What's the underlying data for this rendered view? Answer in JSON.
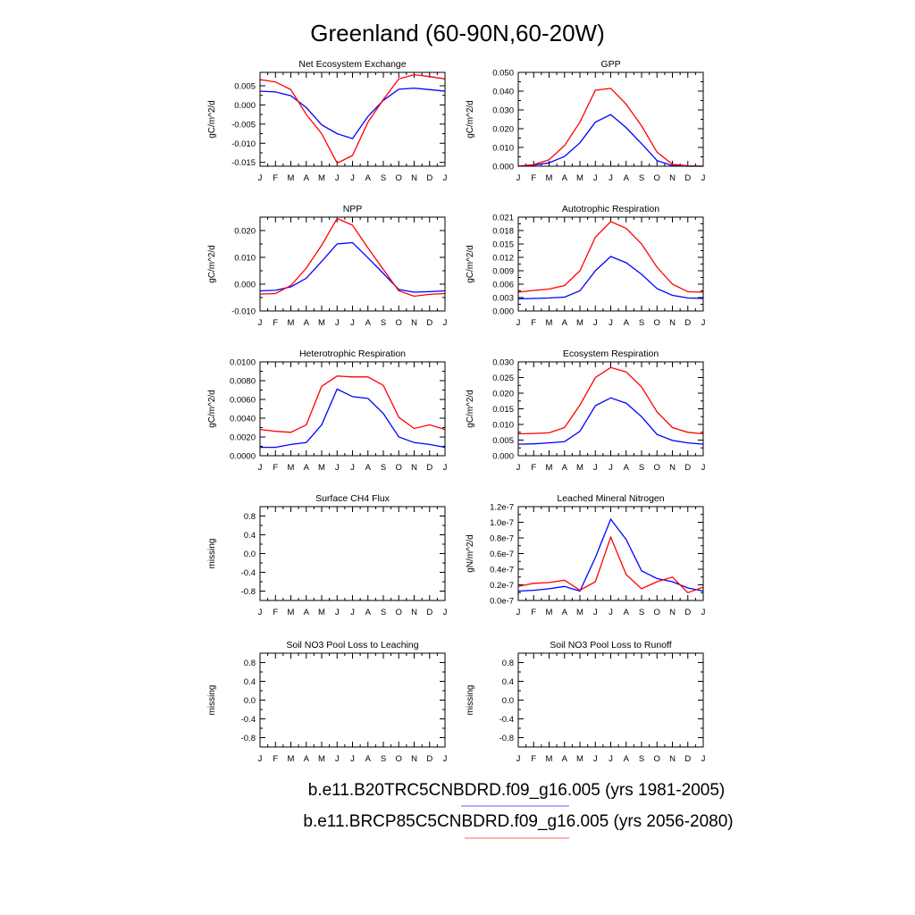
{
  "title": "Greenland (60-90N,60-20W)",
  "colors": {
    "series_1": "#0000ff",
    "series_2": "#ff0000",
    "legend_line_1": "#8080ff",
    "legend_line_2": "#ff8080"
  },
  "legend": [
    {
      "label": "b.e11.B20TRC5CNBDRD.f09_g16.005 (yrs 1981-2005)",
      "color": "#0000ff"
    },
    {
      "label": "b.e11.BRCP85C5CNBDRD.f09_g16.005 (yrs 2056-2080)",
      "color": "#ff0000"
    }
  ],
  "chart_data": [
    {
      "type": "line",
      "title": "Net Ecosystem Exchange",
      "ylabel": "gC/m^2/d",
      "x": [
        "J",
        "F",
        "M",
        "A",
        "M",
        "J",
        "J",
        "A",
        "S",
        "O",
        "N",
        "D",
        "J"
      ],
      "ylim": [
        -0.016,
        0.0085
      ],
      "yticks": [
        -0.015,
        -0.01,
        -0.005,
        0.0,
        0.005
      ],
      "ytick_labels": [
        "-0.015",
        "-0.010",
        "-0.005",
        "0.000",
        "0.005"
      ],
      "series": [
        {
          "color": "#0000ff",
          "values": [
            0.0036,
            0.0034,
            0.0024,
            -0.0007,
            -0.0052,
            -0.0075,
            -0.0088,
            -0.003,
            0.0012,
            0.0041,
            0.0044,
            0.004,
            0.0036
          ]
        },
        {
          "color": "#ff0000",
          "values": [
            0.0066,
            0.006,
            0.004,
            -0.0025,
            -0.0075,
            -0.0152,
            -0.0132,
            -0.0045,
            0.0014,
            0.0068,
            0.0079,
            0.0074,
            0.0068
          ]
        }
      ]
    },
    {
      "type": "line",
      "title": "GPP",
      "ylabel": "gC/m^2/d",
      "x": [
        "J",
        "F",
        "M",
        "A",
        "M",
        "J",
        "J",
        "A",
        "S",
        "O",
        "N",
        "D",
        "J"
      ],
      "ylim": [
        0,
        0.05
      ],
      "yticks": [
        0,
        0.01,
        0.02,
        0.03,
        0.04,
        0.05
      ],
      "ytick_labels": [
        "0.000",
        "0.010",
        "0.020",
        "0.030",
        "0.040",
        "0.050"
      ],
      "series": [
        {
          "color": "#0000ff",
          "values": [
            0.0,
            0.0005,
            0.0018,
            0.0052,
            0.0125,
            0.0235,
            0.0275,
            0.0205,
            0.012,
            0.003,
            0.0003,
            0.0,
            0.0
          ]
        },
        {
          "color": "#ff0000",
          "values": [
            0.0,
            0.0008,
            0.0035,
            0.011,
            0.0235,
            0.0405,
            0.0415,
            0.033,
            0.0215,
            0.0075,
            0.001,
            0.0002,
            0.0
          ]
        }
      ]
    },
    {
      "type": "line",
      "title": "NPP",
      "ylabel": "gC/m^2/d",
      "x": [
        "J",
        "F",
        "M",
        "A",
        "M",
        "J",
        "J",
        "A",
        "S",
        "O",
        "N",
        "D",
        "J"
      ],
      "ylim": [
        -0.01,
        0.025
      ],
      "yticks": [
        -0.01,
        0.0,
        0.01,
        0.02
      ],
      "ytick_labels": [
        "-0.010",
        "0.000",
        "0.010",
        "0.020"
      ],
      "series": [
        {
          "color": "#0000ff",
          "values": [
            -0.0025,
            -0.0023,
            -0.001,
            0.0022,
            0.0085,
            0.015,
            0.0155,
            0.0098,
            0.004,
            -0.002,
            -0.003,
            -0.0028,
            -0.0025
          ]
        },
        {
          "color": "#ff0000",
          "values": [
            -0.0037,
            -0.0035,
            -0.0005,
            0.006,
            0.0145,
            0.0245,
            0.022,
            0.0135,
            0.0055,
            -0.0025,
            -0.0045,
            -0.0038,
            -0.0035
          ]
        }
      ]
    },
    {
      "type": "line",
      "title": "Autotrophic Respiration",
      "ylabel": "gC/m^2/d",
      "x": [
        "J",
        "F",
        "M",
        "A",
        "M",
        "J",
        "J",
        "A",
        "S",
        "O",
        "N",
        "D",
        "J"
      ],
      "ylim": [
        0,
        0.021
      ],
      "yticks": [
        0,
        0.003,
        0.006,
        0.009,
        0.012,
        0.015,
        0.018,
        0.021
      ],
      "ytick_labels": [
        "0.000",
        "0.003",
        "0.006",
        "0.009",
        "0.012",
        "0.015",
        "0.018",
        "0.021"
      ],
      "series": [
        {
          "color": "#0000ff",
          "values": [
            0.0027,
            0.0028,
            0.0029,
            0.0031,
            0.0045,
            0.009,
            0.0122,
            0.0108,
            0.0082,
            0.005,
            0.0035,
            0.0029,
            0.0028
          ]
        },
        {
          "color": "#ff0000",
          "values": [
            0.0042,
            0.0046,
            0.0049,
            0.0057,
            0.009,
            0.0165,
            0.02,
            0.0185,
            0.015,
            0.0098,
            0.006,
            0.0043,
            0.0042
          ]
        }
      ]
    },
    {
      "type": "line",
      "title": "Heterotrophic Respiration",
      "ylabel": "gC/m^2/d",
      "x": [
        "J",
        "F",
        "M",
        "A",
        "M",
        "J",
        "J",
        "A",
        "S",
        "O",
        "N",
        "D",
        "J"
      ],
      "ylim": [
        0,
        0.01
      ],
      "yticks": [
        0,
        0.002,
        0.004,
        0.006,
        0.008,
        0.01
      ],
      "ytick_labels": [
        "0.0000",
        "0.0020",
        "0.0040",
        "0.0060",
        "0.0080",
        "0.0100"
      ],
      "series": [
        {
          "color": "#0000ff",
          "values": [
            0.0009,
            0.0009,
            0.0012,
            0.0014,
            0.0033,
            0.0071,
            0.0063,
            0.0061,
            0.0045,
            0.002,
            0.0014,
            0.0012,
            0.0009
          ]
        },
        {
          "color": "#ff0000",
          "values": [
            0.0028,
            0.0026,
            0.0025,
            0.0033,
            0.0074,
            0.0085,
            0.0084,
            0.0084,
            0.0075,
            0.0041,
            0.0029,
            0.0033,
            0.0028
          ]
        }
      ]
    },
    {
      "type": "line",
      "title": "Ecosystem Respiration",
      "ylabel": "gC/m^2/d",
      "x": [
        "J",
        "F",
        "M",
        "A",
        "M",
        "J",
        "J",
        "A",
        "S",
        "O",
        "N",
        "D",
        "J"
      ],
      "ylim": [
        0,
        0.03
      ],
      "yticks": [
        0,
        0.005,
        0.01,
        0.015,
        0.02,
        0.025,
        0.03
      ],
      "ytick_labels": [
        "0.000",
        "0.005",
        "0.010",
        "0.015",
        "0.020",
        "0.025",
        "0.030"
      ],
      "series": [
        {
          "color": "#0000ff",
          "values": [
            0.0037,
            0.0038,
            0.0041,
            0.0045,
            0.0078,
            0.016,
            0.0185,
            0.0168,
            0.0125,
            0.0068,
            0.0049,
            0.0041,
            0.0037
          ]
        },
        {
          "color": "#ff0000",
          "values": [
            0.007,
            0.0071,
            0.0073,
            0.009,
            0.0162,
            0.025,
            0.0282,
            0.0268,
            0.022,
            0.014,
            0.009,
            0.0075,
            0.007
          ]
        }
      ]
    },
    {
      "type": "line",
      "title": "Surface CH4 Flux",
      "ylabel": "missing",
      "x": [
        "J",
        "F",
        "M",
        "A",
        "M",
        "J",
        "J",
        "A",
        "S",
        "O",
        "N",
        "D",
        "J"
      ],
      "ylim": [
        -1,
        1
      ],
      "yticks": [
        -0.8,
        -0.4,
        0.0,
        0.4,
        0.8
      ],
      "ytick_labels": [
        "-0.8",
        "-0.4",
        "0.0",
        "0.4",
        "0.8"
      ],
      "series": []
    },
    {
      "type": "line",
      "title": "Leached Mineral Nitrogen",
      "ylabel": "gN/m^2/d",
      "x": [
        "J",
        "F",
        "M",
        "A",
        "M",
        "J",
        "J",
        "A",
        "S",
        "O",
        "N",
        "D",
        "J"
      ],
      "ylim": [
        0,
        1.2e-07
      ],
      "yticks": [
        0,
        2e-08,
        4e-08,
        6e-08,
        8e-08,
        1e-07,
        1.2e-07
      ],
      "ytick_labels": [
        "0.0e-7",
        "0.2e-7",
        "0.4e-7",
        "0.6e-7",
        "0.8e-7",
        "1.0e-7",
        "1.2e-7"
      ],
      "series": [
        {
          "color": "#0000ff",
          "values": [
            1.2e-08,
            1.3e-08,
            1.5e-08,
            1.8e-08,
            1.2e-08,
            5.5e-08,
            1.04e-07,
            7.8e-08,
            3.8e-08,
            2.8e-08,
            2.4e-08,
            1.6e-08,
            1.2e-08
          ]
        },
        {
          "color": "#ff0000",
          "values": [
            1.8e-08,
            2.2e-08,
            2.3e-08,
            2.6e-08,
            1.3e-08,
            2.4e-08,
            8.1e-08,
            3.3e-08,
            1.5e-08,
            2.4e-08,
            3e-08,
            1e-08,
            1.7e-08
          ]
        }
      ]
    },
    {
      "type": "line",
      "title": "Soil NO3 Pool Loss to Leaching",
      "ylabel": "missing",
      "x": [
        "J",
        "F",
        "M",
        "A",
        "M",
        "J",
        "J",
        "A",
        "S",
        "O",
        "N",
        "D",
        "J"
      ],
      "ylim": [
        -1,
        1
      ],
      "yticks": [
        -0.8,
        -0.4,
        0.0,
        0.4,
        0.8
      ],
      "ytick_labels": [
        "-0.8",
        "-0.4",
        "0.0",
        "0.4",
        "0.8"
      ],
      "series": []
    },
    {
      "type": "line",
      "title": "Soil NO3 Pool Loss to Runoff",
      "ylabel": "missing",
      "x": [
        "J",
        "F",
        "M",
        "A",
        "M",
        "J",
        "J",
        "A",
        "S",
        "O",
        "N",
        "D",
        "J"
      ],
      "ylim": [
        -1,
        1
      ],
      "yticks": [
        -0.8,
        -0.4,
        0.0,
        0.4,
        0.8
      ],
      "ytick_labels": [
        "-0.8",
        "-0.4",
        "0.0",
        "0.4",
        "0.8"
      ],
      "series": []
    }
  ]
}
